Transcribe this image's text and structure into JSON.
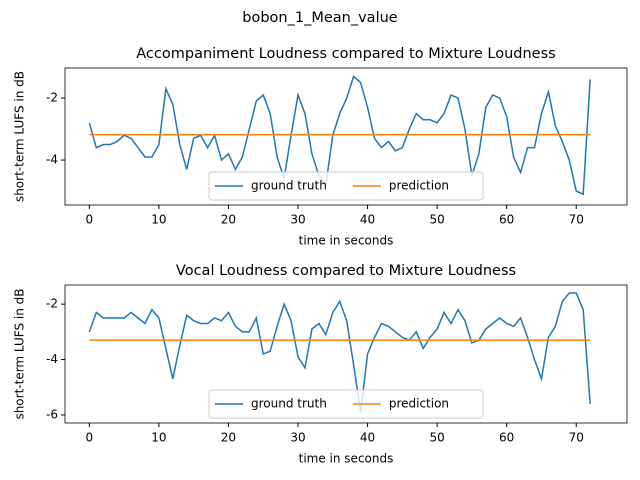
{
  "title": "bobon_1_Mean_value",
  "chart_data": [
    {
      "type": "line",
      "title": "Accompaniment Loudness compared to Mixture Loudness",
      "xlabel": "time in seconds",
      "ylabel": "short-term LUFS in dB",
      "x": [
        0,
        1,
        2,
        3,
        4,
        5,
        6,
        7,
        8,
        9,
        10,
        11,
        12,
        13,
        14,
        15,
        16,
        17,
        18,
        19,
        20,
        21,
        22,
        23,
        24,
        25,
        26,
        27,
        28,
        29,
        30,
        31,
        32,
        33,
        34,
        35,
        36,
        37,
        38,
        39,
        40,
        41,
        42,
        43,
        44,
        45,
        46,
        47,
        48,
        49,
        50,
        51,
        52,
        53,
        54,
        55,
        56,
        57,
        58,
        59,
        60,
        61,
        62,
        63,
        64,
        65,
        66,
        67,
        68,
        69,
        70,
        71,
        72
      ],
      "series": [
        {
          "name": "ground truth",
          "color": "#1f77b4",
          "values": [
            -2.8,
            -3.6,
            -3.5,
            -3.5,
            -3.4,
            -3.2,
            -3.3,
            -3.6,
            -3.9,
            -3.9,
            -3.5,
            -1.7,
            -2.2,
            -3.5,
            -4.3,
            -3.3,
            -3.2,
            -3.6,
            -3.2,
            -4.0,
            -3.8,
            -4.3,
            -3.9,
            -3.0,
            -2.1,
            -1.9,
            -2.5,
            -3.9,
            -4.6,
            -3.2,
            -1.9,
            -2.5,
            -3.8,
            -4.5,
            -4.8,
            -3.2,
            -2.5,
            -2.0,
            -1.3,
            -1.5,
            -2.3,
            -3.3,
            -3.6,
            -3.4,
            -3.7,
            -3.6,
            -3.0,
            -2.5,
            -2.7,
            -2.7,
            -2.8,
            -2.5,
            -1.9,
            -2.0,
            -3.0,
            -4.5,
            -3.8,
            -2.3,
            -1.9,
            -2.0,
            -2.6,
            -3.9,
            -4.4,
            -3.6,
            -3.6,
            -2.5,
            -1.8,
            -2.9,
            -3.4,
            -4.0,
            -5.0,
            -5.1,
            -1.4
          ]
        },
        {
          "name": "prediction",
          "color": "#ff7f0e",
          "values": [
            -3.18,
            -3.18,
            -3.18,
            -3.18,
            -3.18,
            -3.18,
            -3.18,
            -3.18,
            -3.18,
            -3.18,
            -3.18,
            -3.18,
            -3.18,
            -3.18,
            -3.18,
            -3.18,
            -3.18,
            -3.18,
            -3.18,
            -3.18,
            -3.18,
            -3.18,
            -3.18,
            -3.18,
            -3.18,
            -3.18,
            -3.18,
            -3.18,
            -3.18,
            -3.18,
            -3.18,
            -3.18,
            -3.18,
            -3.18,
            -3.18,
            -3.18,
            -3.18,
            -3.18,
            -3.18,
            -3.18,
            -3.18,
            -3.18,
            -3.18,
            -3.18,
            -3.18,
            -3.18,
            -3.18,
            -3.18,
            -3.18,
            -3.18,
            -3.18,
            -3.18,
            -3.18,
            -3.18,
            -3.18,
            -3.18,
            -3.18,
            -3.18,
            -3.18,
            -3.18,
            -3.18,
            -3.18,
            -3.18,
            -3.18,
            -3.18,
            -3.18,
            -3.18,
            -3.18,
            -3.18,
            -3.18,
            -3.18,
            -3.18,
            -3.18
          ]
        }
      ],
      "xlim": [
        -3.5,
        77.3
      ],
      "xticks": [
        0,
        10,
        20,
        30,
        40,
        50,
        60,
        70
      ],
      "ylim": [
        -5.45,
        -1.03
      ],
      "yticks": [
        -4,
        -2
      ],
      "legend": "lower center"
    },
    {
      "type": "line",
      "title": "Vocal Loudness compared to Mixture Loudness",
      "xlabel": "time in seconds",
      "ylabel": "short-term LUFS in dB",
      "x": [
        0,
        1,
        2,
        3,
        4,
        5,
        6,
        7,
        8,
        9,
        10,
        11,
        12,
        13,
        14,
        15,
        16,
        17,
        18,
        19,
        20,
        21,
        22,
        23,
        24,
        25,
        26,
        27,
        28,
        29,
        30,
        31,
        32,
        33,
        34,
        35,
        36,
        37,
        38,
        39,
        40,
        41,
        42,
        43,
        44,
        45,
        46,
        47,
        48,
        49,
        50,
        51,
        52,
        53,
        54,
        55,
        56,
        57,
        58,
        59,
        60,
        61,
        62,
        63,
        64,
        65,
        66,
        67,
        68,
        69,
        70,
        71,
        72
      ],
      "series": [
        {
          "name": "ground truth",
          "color": "#1f77b4",
          "values": [
            -3.0,
            -2.3,
            -2.5,
            -2.5,
            -2.5,
            -2.5,
            -2.3,
            -2.5,
            -2.7,
            -2.2,
            -2.5,
            -3.6,
            -4.7,
            -3.5,
            -2.4,
            -2.6,
            -2.7,
            -2.7,
            -2.5,
            -2.6,
            -2.3,
            -2.8,
            -3.0,
            -3.0,
            -2.5,
            -3.8,
            -3.7,
            -2.8,
            -2.0,
            -2.6,
            -3.9,
            -4.3,
            -2.9,
            -2.7,
            -3.1,
            -2.3,
            -1.9,
            -2.6,
            -4.2,
            -5.9,
            -3.8,
            -3.2,
            -2.7,
            -2.8,
            -3.0,
            -3.2,
            -3.3,
            -3.0,
            -3.6,
            -3.2,
            -2.9,
            -2.3,
            -2.7,
            -2.2,
            -2.6,
            -3.4,
            -3.3,
            -2.9,
            -2.7,
            -2.5,
            -2.7,
            -2.8,
            -2.5,
            -3.2,
            -4.0,
            -4.7,
            -3.2,
            -2.8,
            -1.9,
            -1.6,
            -1.6,
            -2.2,
            -5.6
          ]
        },
        {
          "name": "prediction",
          "color": "#ff7f0e",
          "values": [
            -3.3,
            -3.3,
            -3.3,
            -3.3,
            -3.3,
            -3.3,
            -3.3,
            -3.3,
            -3.3,
            -3.3,
            -3.3,
            -3.3,
            -3.3,
            -3.3,
            -3.3,
            -3.3,
            -3.3,
            -3.3,
            -3.3,
            -3.3,
            -3.3,
            -3.3,
            -3.3,
            -3.3,
            -3.3,
            -3.3,
            -3.3,
            -3.3,
            -3.3,
            -3.3,
            -3.3,
            -3.3,
            -3.3,
            -3.3,
            -3.3,
            -3.3,
            -3.3,
            -3.3,
            -3.3,
            -3.3,
            -3.3,
            -3.3,
            -3.3,
            -3.3,
            -3.3,
            -3.3,
            -3.3,
            -3.3,
            -3.3,
            -3.3,
            -3.3,
            -3.3,
            -3.3,
            -3.3,
            -3.3,
            -3.3,
            -3.3,
            -3.3,
            -3.3,
            -3.3,
            -3.3,
            -3.3,
            -3.3,
            -3.3,
            -3.3,
            -3.3,
            -3.3,
            -3.3,
            -3.3,
            -3.3,
            -3.3,
            -3.3,
            -3.3
          ]
        }
      ],
      "xlim": [
        -3.5,
        77.3
      ],
      "xticks": [
        0,
        10,
        20,
        30,
        40,
        50,
        60,
        70
      ],
      "ylim": [
        -6.29,
        -1.31
      ],
      "yticks": [
        -6,
        -4,
        -2
      ],
      "legend": "lower center"
    }
  ]
}
